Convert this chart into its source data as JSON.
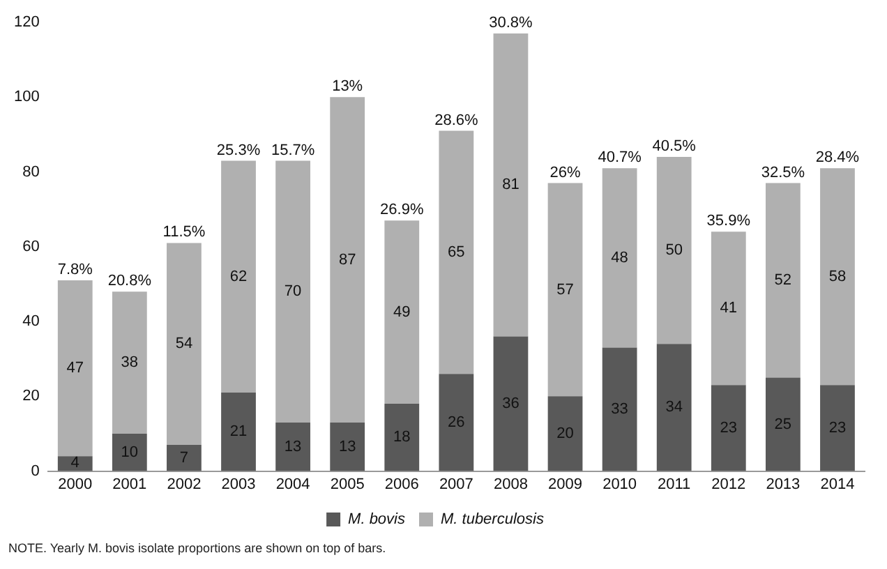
{
  "chart_data": {
    "type": "bar",
    "stacked": true,
    "categories": [
      "2000",
      "2001",
      "2002",
      "2003",
      "2004",
      "2005",
      "2006",
      "2007",
      "2008",
      "2009",
      "2010",
      "2011",
      "2012",
      "2013",
      "2014"
    ],
    "series": [
      {
        "name": "M. bovis",
        "color": "#595959",
        "values": [
          4,
          10,
          7,
          21,
          13,
          13,
          18,
          26,
          36,
          20,
          33,
          34,
          23,
          25,
          23
        ]
      },
      {
        "name": "M. tuberculosis",
        "color": "#b0b0b0",
        "values": [
          47,
          38,
          54,
          62,
          70,
          87,
          49,
          65,
          81,
          57,
          48,
          50,
          41,
          52,
          58
        ]
      }
    ],
    "ylim": [
      0,
      120
    ],
    "yticks": [
      0,
      20,
      40,
      60,
      80,
      100,
      120
    ],
    "grid": false,
    "legend": "bottom",
    "data_labels": true,
    "annotations": [
      {
        "text": "7.8%",
        "x": "2000",
        "y": 51
      },
      {
        "text": "20.8%",
        "x": "2001",
        "y": 48
      },
      {
        "text": "11.5%",
        "x": "2002",
        "y": 61
      },
      {
        "text": "25.3%",
        "x": "2003",
        "y": 83
      },
      {
        "text": "15.7%",
        "x": "2004",
        "y": 83
      },
      {
        "text": "13%",
        "x": "2005",
        "y": 100
      },
      {
        "text": "26.9%",
        "x": "2006",
        "y": 67
      },
      {
        "text": "28.6%",
        "x": "2007",
        "y": 91
      },
      {
        "text": "30.8%",
        "x": "2008",
        "y": 117
      },
      {
        "text": "26%",
        "x": "2009",
        "y": 77
      },
      {
        "text": "40.7%",
        "x": "2010",
        "y": 81
      },
      {
        "text": "40.5%",
        "x": "2011",
        "y": 84
      },
      {
        "text": "35.9%",
        "x": "2012",
        "y": 64
      },
      {
        "text": "32.5%",
        "x": "2013",
        "y": 77
      },
      {
        "text": "28.4%",
        "x": "2014",
        "y": 81
      },
      "NOTE. Yearly M. bovis isolate proportions are shown on top of bars."
    ]
  }
}
